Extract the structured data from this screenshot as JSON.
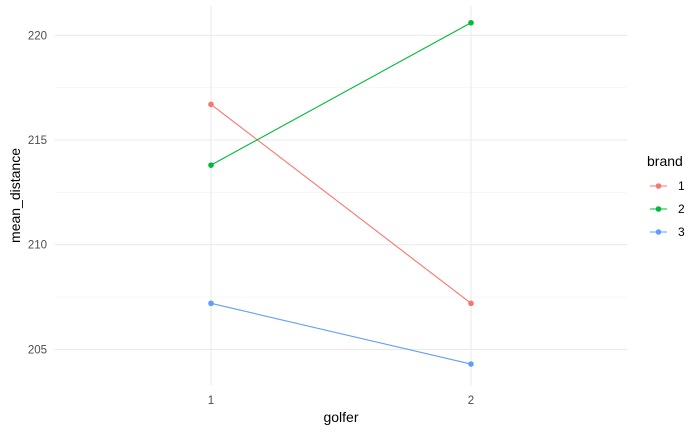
{
  "chart_data": {
    "type": "line",
    "title": "",
    "xlabel": "golfer",
    "ylabel": "mean_distance",
    "x": [
      "1",
      "2"
    ],
    "ylim": [
      203.3,
      221.4
    ],
    "y_ticks": [
      205,
      210,
      215,
      220
    ],
    "grid": true,
    "legend": {
      "title": "brand",
      "position": "right"
    },
    "series": [
      {
        "name": "1",
        "color": "#F8766D",
        "values": [
          216.7,
          207.2
        ]
      },
      {
        "name": "2",
        "color": "#00BA38",
        "values": [
          213.8,
          220.6
        ]
      },
      {
        "name": "3",
        "color": "#619CFF",
        "values": [
          207.2,
          204.3
        ]
      }
    ]
  }
}
